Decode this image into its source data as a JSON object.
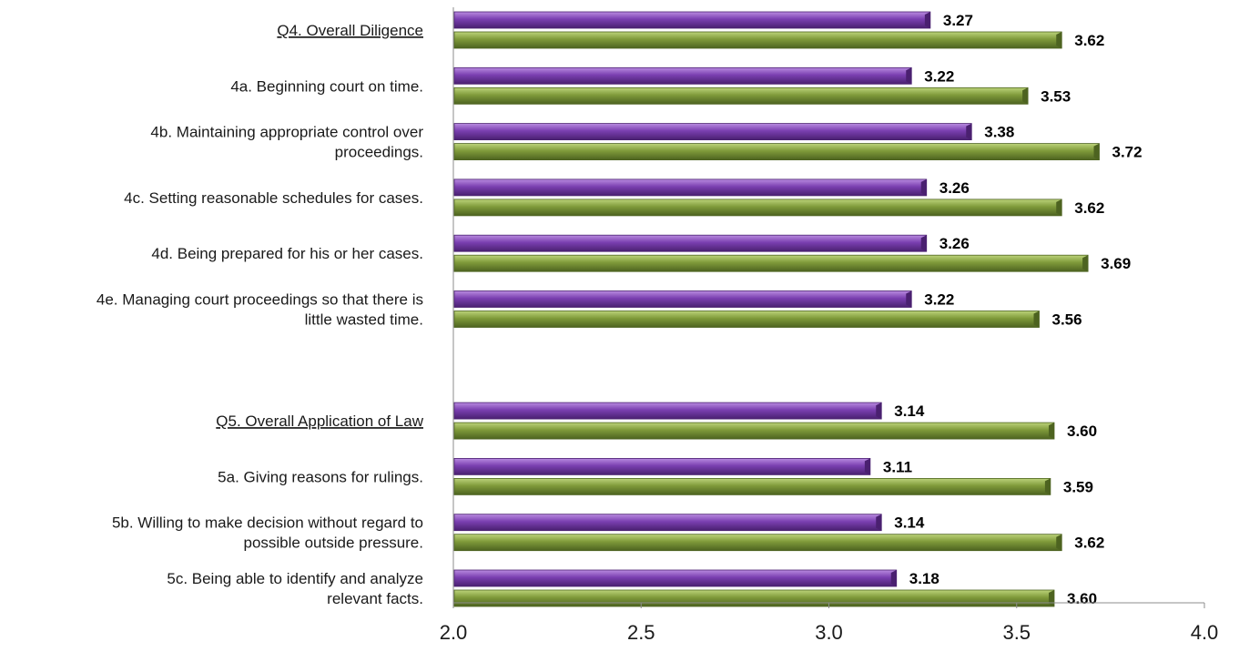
{
  "chart_data": {
    "type": "bar",
    "orientation": "horizontal",
    "xlim": [
      2.0,
      4.0
    ],
    "x_ticks": [
      "2.0",
      "2.5",
      "3.0",
      "3.5",
      "4.0"
    ],
    "grid": false,
    "legend": null,
    "categories": [
      {
        "label": [
          "Q4. Overall Diligence"
        ],
        "underline": true,
        "values": [
          3.27,
          3.62
        ],
        "value_labels": [
          "3.27",
          "3.62"
        ]
      },
      {
        "label": [
          "4a. Beginning court on time."
        ],
        "underline": false,
        "values": [
          3.22,
          3.53
        ],
        "value_labels": [
          "3.22",
          "3.53"
        ]
      },
      {
        "label": [
          "4b. Maintaining appropriate control over",
          "proceedings."
        ],
        "underline": false,
        "values": [
          3.38,
          3.72
        ],
        "value_labels": [
          "3.38",
          "3.72"
        ]
      },
      {
        "label": [
          "4c. Setting reasonable schedules for cases."
        ],
        "underline": false,
        "values": [
          3.26,
          3.62
        ],
        "value_labels": [
          "3.26",
          "3.62"
        ]
      },
      {
        "label": [
          "4d. Being prepared for his or her cases."
        ],
        "underline": false,
        "values": [
          3.26,
          3.69
        ],
        "value_labels": [
          "3.26",
          "3.69"
        ]
      },
      {
        "label": [
          "4e. Managing court proceedings so that there is",
          "little wasted time."
        ],
        "underline": false,
        "values": [
          3.22,
          3.56
        ],
        "value_labels": [
          "3.22",
          "3.56"
        ]
      },
      {
        "label": [],
        "underline": false,
        "values": [],
        "value_labels": []
      },
      {
        "label": [
          "Q5. Overall Application of Law"
        ],
        "underline": true,
        "values": [
          3.14,
          3.6
        ],
        "value_labels": [
          "3.14",
          "3.60"
        ]
      },
      {
        "label": [
          "5a. Giving reasons for rulings."
        ],
        "underline": false,
        "values": [
          3.11,
          3.59
        ],
        "value_labels": [
          "3.11",
          "3.59"
        ]
      },
      {
        "label": [
          "5b. Willing to make decision without regard to",
          "possible outside pressure."
        ],
        "underline": false,
        "values": [
          3.14,
          3.62
        ],
        "value_labels": [
          "3.14",
          "3.62"
        ]
      },
      {
        "label": [
          "5c. Being able to identify and analyze",
          "relevant facts."
        ],
        "underline": false,
        "values": [
          3.18,
          3.6
        ],
        "value_labels": [
          "3.18",
          "3.60"
        ]
      }
    ],
    "series": [
      {
        "color": "#7a3fb0",
        "color_light": "#b98be0",
        "color_dark": "#4a2070"
      },
      {
        "color": "#7f9a3a",
        "color_light": "#bcd37a",
        "color_dark": "#4d6320"
      }
    ]
  }
}
